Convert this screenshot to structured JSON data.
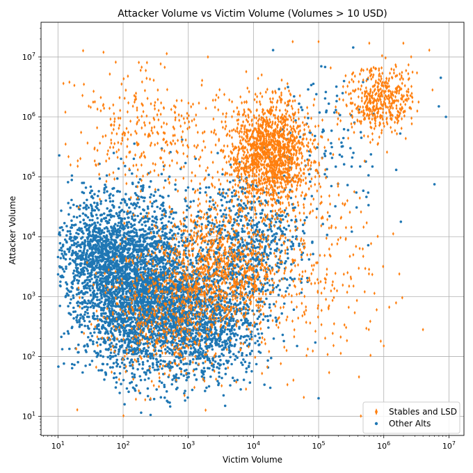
{
  "chart_data": {
    "type": "scatter",
    "title": "Attacker Volume vs Victim Volume (Volumes > 10 USD)",
    "xlabel": "Victim Volume",
    "ylabel": "Attacker Volume",
    "xscale": "log",
    "yscale": "log",
    "xlim": [
      5.5,
      17000000
    ],
    "ylim": [
      4.8,
      38000000
    ],
    "grid": true,
    "legend_position": "lower-right",
    "x_ticks": [
      {
        "value": 10,
        "base": "10",
        "exp": "1"
      },
      {
        "value": 100,
        "base": "10",
        "exp": "2"
      },
      {
        "value": 1000,
        "base": "10",
        "exp": "3"
      },
      {
        "value": 10000,
        "base": "10",
        "exp": "4"
      },
      {
        "value": 100000,
        "base": "10",
        "exp": "5"
      },
      {
        "value": 1000000,
        "base": "10",
        "exp": "6"
      },
      {
        "value": 10000000,
        "base": "10",
        "exp": "7"
      }
    ],
    "y_ticks": [
      {
        "value": 10,
        "base": "10",
        "exp": "1"
      },
      {
        "value": 100,
        "base": "10",
        "exp": "2"
      },
      {
        "value": 1000,
        "base": "10",
        "exp": "3"
      },
      {
        "value": 10000,
        "base": "10",
        "exp": "4"
      },
      {
        "value": 100000,
        "base": "10",
        "exp": "5"
      },
      {
        "value": 1000000,
        "base": "10",
        "exp": "6"
      },
      {
        "value": 10000000,
        "base": "10",
        "exp": "7"
      }
    ],
    "series": [
      {
        "name": "Other Alts",
        "color": "#1f77b4",
        "marker": "circle",
        "clusters": [
          {
            "center": [
              150,
              1500
            ],
            "spread": [
              0.48,
              0.72
            ],
            "points": 3000
          },
          {
            "center": [
              1500,
              400
            ],
            "spread": [
              0.5,
              0.5
            ],
            "points": 1400
          },
          {
            "center": [
              40,
              6000
            ],
            "spread": [
              0.3,
              0.45
            ],
            "points": 600
          },
          {
            "center": [
              8000,
              8000
            ],
            "spread": [
              0.45,
              0.55
            ],
            "points": 700
          },
          {
            "center": [
              150000,
              300000
            ],
            "spread": [
              0.45,
              0.6
            ],
            "points": 120
          }
        ],
        "extra_points": [
          [
            20000,
            13000000
          ],
          [
            7500000,
            4500000
          ],
          [
            7000000,
            1500000
          ],
          [
            9000000,
            1000000
          ],
          [
            6000000,
            75000
          ],
          [
            100000,
            20
          ],
          [
            110000,
            7000000
          ]
        ]
      },
      {
        "name": "Stables and LSD",
        "color": "#ff7f0e",
        "marker": "diamond",
        "clusters": [
          {
            "center": [
              18000,
              250000
            ],
            "spread": [
              0.32,
              0.45
            ],
            "points": 1500
          },
          {
            "center": [
              3500,
              3000
            ],
            "spread": [
              0.45,
              0.55
            ],
            "points": 1000
          },
          {
            "center": [
              400,
              500
            ],
            "spread": [
              0.5,
              0.6
            ],
            "points": 550
          },
          {
            "center": [
              900000,
              2000000
            ],
            "spread": [
              0.25,
              0.28
            ],
            "points": 450
          },
          {
            "center": [
              300,
              500000
            ],
            "spread": [
              0.6,
              0.5
            ],
            "points": 350
          },
          {
            "center": [
              100000,
              3000
            ],
            "spread": [
              0.5,
              0.9
            ],
            "points": 250
          }
        ],
        "extra_points": [
          [
            50,
            12000000
          ],
          [
            15,
            3800000
          ],
          [
            25,
            3500000
          ],
          [
            2000,
            10000000
          ],
          [
            40000,
            18000000
          ],
          [
            100000,
            18000000
          ],
          [
            600000,
            17000000
          ],
          [
            2000000,
            17000000
          ],
          [
            5000000,
            13000000
          ],
          [
            13,
            1200000
          ],
          [
            4000000,
            280
          ],
          [
            1000000,
            150
          ],
          [
            900000,
            180
          ]
        ]
      }
    ]
  }
}
